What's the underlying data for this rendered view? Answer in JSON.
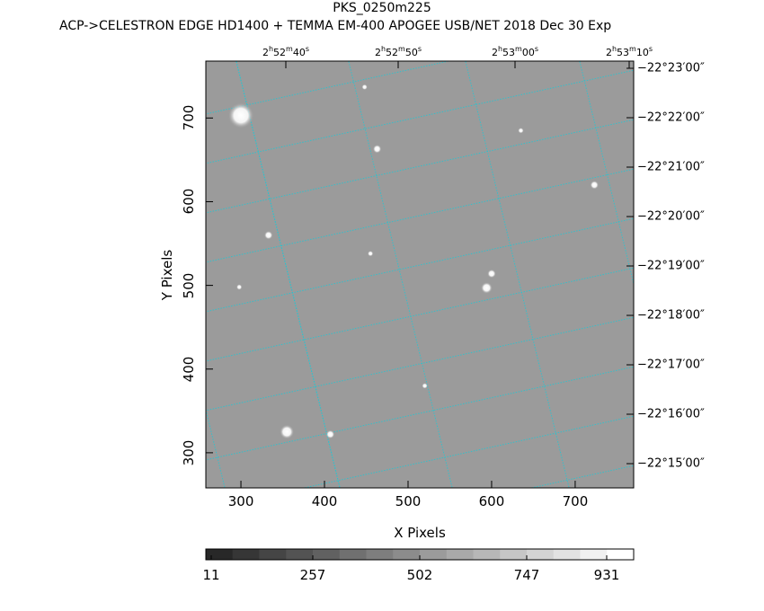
{
  "title": "PKS_0250m225",
  "subtitle": "ACP->CELESTRON EDGE HD1400 + TEMMA EM-400 APOGEE USB/NET   2018 Dec 30    Exp",
  "ra_labels": [
    {
      "h": "2",
      "m": "52",
      "s": "40",
      "s_unit": "s"
    },
    {
      "h": "2",
      "m": "52",
      "s": "50",
      "s_unit": "s"
    },
    {
      "h": "2",
      "m": "53",
      "s": "00",
      "s_unit": "s"
    },
    {
      "h": "2",
      "m": "53",
      "s": "10",
      "s_unit": "s"
    }
  ],
  "dec_labels": [
    "−22°23′00″",
    "−22°22′00″",
    "−22°21′00″",
    "−22°20′00″",
    "−22°19′00″",
    "−22°18′00″",
    "−22°17′00″",
    "−22°16′00″",
    "−22°15′00″"
  ],
  "x_axis": {
    "label": "X Pixels",
    "ticks": [
      "300",
      "400",
      "500",
      "600",
      "700"
    ],
    "range": [
      258,
      770
    ]
  },
  "y_axis": {
    "label": "Y Pixels",
    "ticks": [
      "300",
      "400",
      "500",
      "600",
      "700"
    ],
    "range": [
      258,
      768
    ]
  },
  "colorbar": {
    "ticks": [
      "11",
      "257",
      "502",
      "747",
      "931"
    ],
    "segments": 16
  },
  "colors": {
    "image_background": "#9b9b9b",
    "grid": "#22c7d4",
    "frame": "#000000"
  },
  "stars": [
    {
      "x": 300,
      "y": 703,
      "r": 9
    },
    {
      "x": 355,
      "y": 325,
      "r": 5
    },
    {
      "x": 594,
      "y": 497,
      "r": 4
    },
    {
      "x": 600,
      "y": 514,
      "r": 3
    },
    {
      "x": 463,
      "y": 663,
      "r": 3
    },
    {
      "x": 333,
      "y": 560,
      "r": 3
    },
    {
      "x": 407,
      "y": 322,
      "r": 3
    },
    {
      "x": 723,
      "y": 620,
      "r": 3
    },
    {
      "x": 448,
      "y": 737,
      "r": 2
    },
    {
      "x": 520,
      "y": 380,
      "r": 2
    },
    {
      "x": 298,
      "y": 498,
      "r": 2
    },
    {
      "x": 455,
      "y": 538,
      "r": 2
    },
    {
      "x": 635,
      "y": 685,
      "r": 2
    }
  ]
}
